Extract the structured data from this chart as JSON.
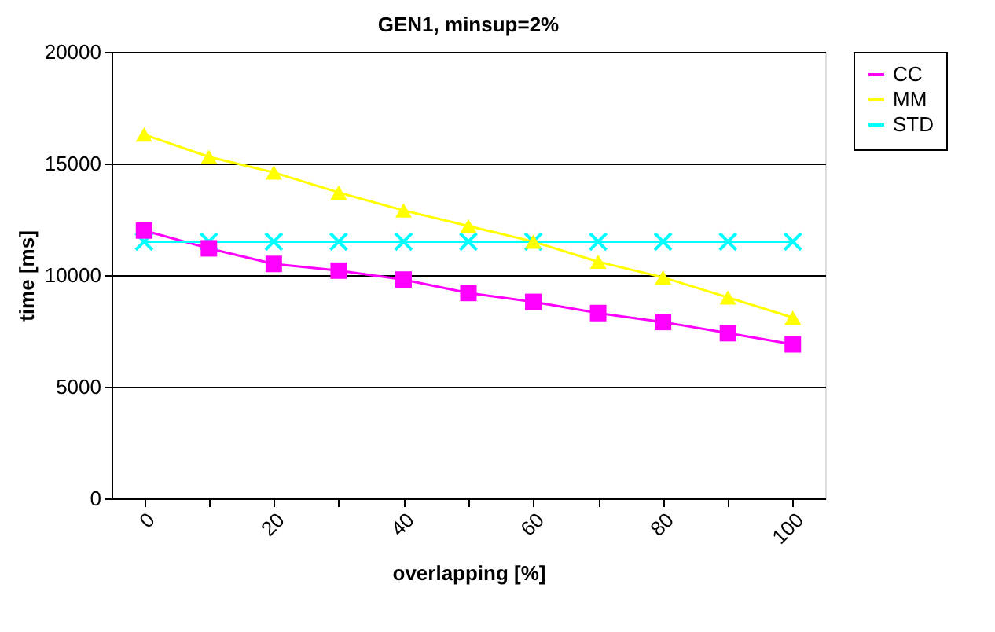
{
  "chart_data": {
    "type": "line",
    "title": "GEN1, minsup=2%",
    "xlabel": "overlapping [%]",
    "ylabel": "time [ms]",
    "categories": [
      "0",
      null,
      "20",
      null,
      "40",
      null,
      "60",
      null,
      "80",
      null,
      "100"
    ],
    "series": [
      {
        "name": "CC",
        "color": "#ff00ff",
        "marker": "square",
        "values": [
          12000,
          11200,
          10500,
          10200,
          9800,
          9200,
          8800,
          8300,
          7900,
          7400,
          6900
        ]
      },
      {
        "name": "MM",
        "color": "#ffff00",
        "marker": "triangle",
        "values": [
          16300,
          15300,
          14600,
          13700,
          12900,
          12200,
          11500,
          10600,
          9900,
          9000,
          8100
        ]
      },
      {
        "name": "STD",
        "color": "#00ffff",
        "marker": "cross",
        "values": [
          11500,
          11500,
          11500,
          11500,
          11500,
          11500,
          11500,
          11500,
          11500,
          11500,
          11500
        ]
      }
    ],
    "ylim": [
      0,
      20000
    ],
    "yticks": [
      0,
      5000,
      10000,
      15000,
      20000
    ],
    "grid": "y",
    "legend": "right"
  }
}
